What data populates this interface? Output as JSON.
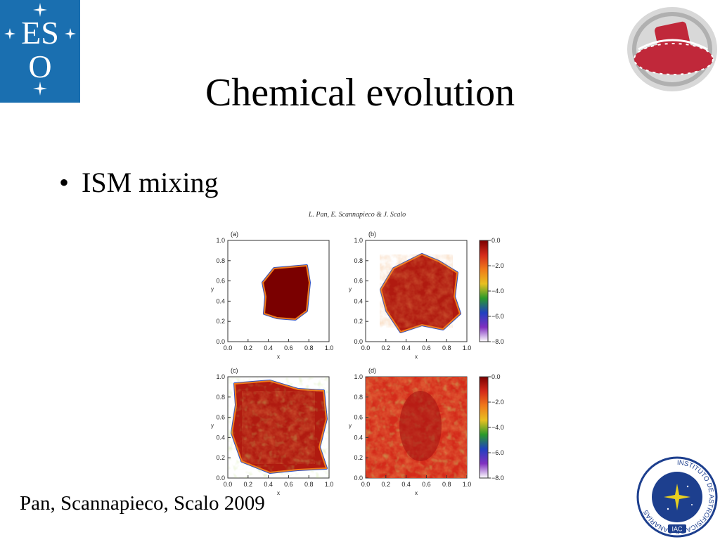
{
  "slide": {
    "title": "Chemical evolution",
    "bullets": [
      "ISM mixing"
    ],
    "citation": "Pan, Scannapieco, Scalo 2009"
  },
  "logos": {
    "eso": {
      "text_top": "ES",
      "text_bottom": "O",
      "bg_color": "#1a6fb0"
    },
    "telescope": {
      "color": "#c0283a"
    },
    "iac": {
      "ring_text": "INSTITUTO DE ASTROFISICA DE CANARIAS",
      "badge": "IAC",
      "color": "#1d3f8e"
    }
  },
  "figure": {
    "author_line": "L. Pan, E. Scannapieco & J. Scalo",
    "panels": [
      {
        "label": "(a)",
        "xlabel": "x",
        "ylabel": "y"
      },
      {
        "label": "(b)",
        "xlabel": "x",
        "ylabel": "y"
      },
      {
        "label": "(c)",
        "xlabel": "x",
        "ylabel": "y"
      },
      {
        "label": "(d)",
        "xlabel": "x",
        "ylabel": "y"
      }
    ],
    "axis_ticks": [
      "0.0",
      "0.2",
      "0.4",
      "0.6",
      "0.8",
      "1.0"
    ],
    "colorbar_ticks": [
      "0.0",
      "−2.0",
      "−4.0",
      "−6.0",
      "−8.0"
    ],
    "colorbar_colors": [
      "#7a0000",
      "#d42a1a",
      "#f07a1a",
      "#e8c020",
      "#2a9a2a",
      "#2040c0",
      "#8030c0",
      "#ffffff"
    ]
  }
}
